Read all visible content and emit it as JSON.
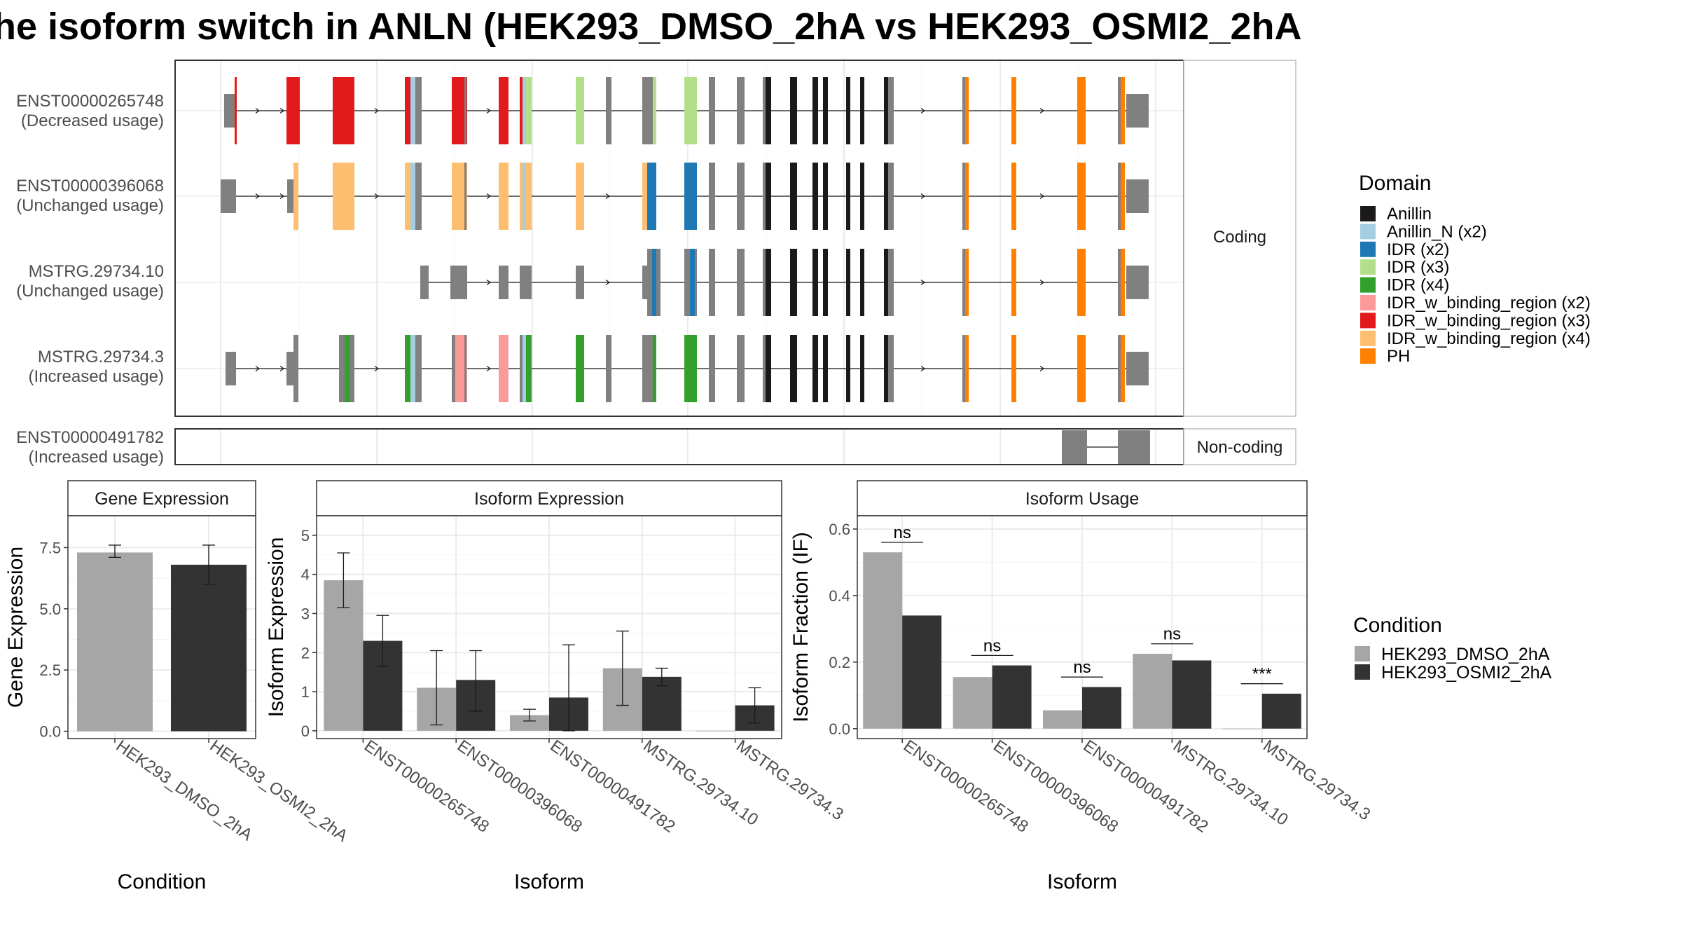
{
  "title": "he isoform switch in ANLN (HEK293_DMSO_2hA vs HEK293_OSMI2_2hA",
  "colors": {
    "Anillin": "#1a1a1a",
    "Anillin_N (x2)": "#a6cee3",
    "IDR (x2)": "#1f78b4",
    "IDR (x3)": "#b2df8a",
    "IDR (x4)": "#33a02c",
    "IDR_w_binding_region (x2)": "#fb9a99",
    "IDR_w_binding_region (x3)": "#e31a1c",
    "IDR_w_binding_region (x4)": "#fdbf6f",
    "PH": "#ff7f00",
    "exon": "#808080",
    "DMSO": "#a6a6a6",
    "OSMI2": "#333333"
  },
  "structure": {
    "coding_strip_label": "Coding",
    "noncoding_strip_label": "Non-coding",
    "transcripts": [
      {
        "id": "ENST00000265748",
        "usage": "(Decreased usage)"
      },
      {
        "id": "ENST00000396068",
        "usage": "(Unchanged usage)"
      },
      {
        "id": "MSTRG.29734.10",
        "usage": "(Unchanged usage)"
      },
      {
        "id": "MSTRG.29734.3",
        "usage": "(Increased usage)"
      }
    ],
    "noncoding": {
      "id": "ENST00000491782",
      "usage": "(Increased usage)"
    }
  },
  "domain_legend": {
    "title": "Domain",
    "items": [
      "Anillin",
      "Anillin_N (x2)",
      "IDR (x2)",
      "IDR (x3)",
      "IDR (x4)",
      "IDR_w_binding_region (x2)",
      "IDR_w_binding_region (x3)",
      "IDR_w_binding_region (x4)",
      "PH"
    ]
  },
  "condition_legend": {
    "title": "Condition",
    "items": [
      "HEK293_DMSO_2hA",
      "HEK293_OSMI2_2hA"
    ]
  },
  "chart_data": [
    {
      "type": "bar",
      "title": "Gene Expression",
      "xlabel": "Condition",
      "ylabel": "Gene Expression",
      "categories": [
        "HEK293_DMSO_2hA",
        "HEK293_OSMI2_2hA"
      ],
      "values": [
        7.3,
        6.8
      ],
      "error_low": [
        7.1,
        6.0
      ],
      "error_high": [
        7.6,
        7.6
      ],
      "yticks": [
        "0.0",
        "2.5",
        "5.0",
        "7.5"
      ],
      "ylim": [
        -0.3,
        8.8
      ]
    },
    {
      "type": "bar",
      "title": "Isoform Expression",
      "xlabel": "Isoform",
      "ylabel": "Isoform Expression",
      "categories": [
        "ENST00000265748",
        "ENST00000396068",
        "ENST00000491782",
        "MSTRG.29734.10",
        "MSTRG.29734.3"
      ],
      "series": [
        {
          "name": "HEK293_DMSO_2hA",
          "values": [
            3.85,
            1.1,
            0.4,
            1.6,
            0.0
          ],
          "error_low": [
            3.15,
            0.15,
            0.25,
            0.65,
            0.0
          ],
          "error_high": [
            4.55,
            2.05,
            0.55,
            2.55,
            0.0
          ]
        },
        {
          "name": "HEK293_OSMI2_2hA",
          "values": [
            2.3,
            1.3,
            0.85,
            1.38,
            0.65
          ],
          "error_low": [
            1.65,
            0.5,
            0.0,
            1.15,
            0.2
          ],
          "error_high": [
            2.95,
            2.05,
            2.2,
            1.6,
            1.1
          ]
        }
      ],
      "yticks": [
        "0",
        "1",
        "2",
        "3",
        "4",
        "5"
      ],
      "ylim": [
        -0.2,
        5.5
      ]
    },
    {
      "type": "bar",
      "title": "Isoform Usage",
      "xlabel": "Isoform",
      "ylabel": "Isoform Fraction (IF)",
      "categories": [
        "ENST00000265748",
        "ENST00000396068",
        "ENST00000491782",
        "MSTRG.29734.10",
        "MSTRG.29734.3"
      ],
      "series": [
        {
          "name": "HEK293_DMSO_2hA",
          "values": [
            0.53,
            0.155,
            0.055,
            0.225,
            0.0
          ]
        },
        {
          "name": "HEK293_OSMI2_2hA",
          "values": [
            0.34,
            0.19,
            0.125,
            0.205,
            0.105
          ]
        }
      ],
      "significance": [
        "ns",
        "ns",
        "ns",
        "ns",
        "***"
      ],
      "yticks": [
        "0.0",
        "0.2",
        "0.4",
        "0.6"
      ],
      "ylim": [
        -0.03,
        0.64
      ]
    }
  ]
}
